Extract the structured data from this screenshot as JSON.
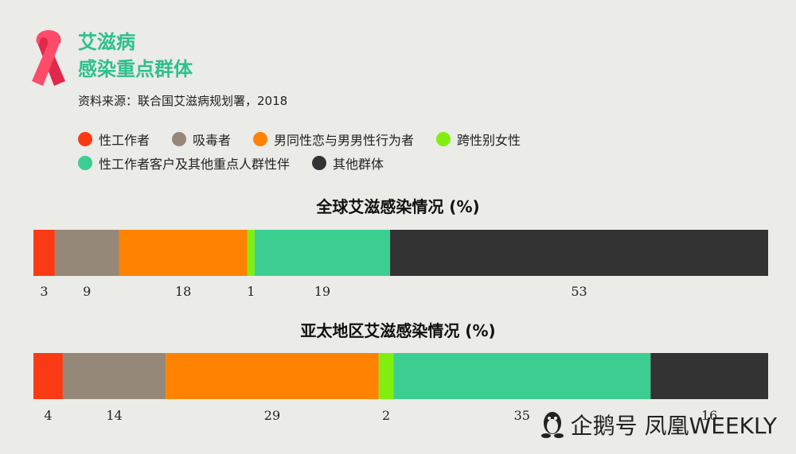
{
  "header": {
    "title_line1": "艾滋病",
    "title_line2": "感染重点群体",
    "source": "资料来源：联合国艾滋病规划署，2018"
  },
  "legend": {
    "row1": [
      {
        "label": "性工作者",
        "color": "#fa3a14"
      },
      {
        "label": "吸毒者",
        "color": "#958878"
      },
      {
        "label": "男同性恋与男男性行为者",
        "color": "#ff8200"
      },
      {
        "label": "跨性别女性",
        "color": "#80ef10"
      }
    ],
    "row2": [
      {
        "label": "性工作者客户及其他重点人群性伴",
        "color": "#3cce90"
      },
      {
        "label": "其他群体",
        "color": "#333333"
      }
    ]
  },
  "chart_data": [
    {
      "type": "bar",
      "title": "全球艾滋感染情况 (%)",
      "categories": [
        "性工作者",
        "吸毒者",
        "男同性恋与男男性行为者",
        "跨性别女性",
        "性工作者客户及其他重点人群性伴",
        "其他群体"
      ],
      "values": [
        3,
        9,
        18,
        1,
        19,
        53
      ],
      "stacked": true,
      "colors": [
        "#fa3a14",
        "#958878",
        "#ff8200",
        "#80ef10",
        "#3cce90",
        "#333333"
      ]
    },
    {
      "type": "bar",
      "title": "亚太地区艾滋感染情况 (%)",
      "categories": [
        "性工作者",
        "吸毒者",
        "男同性恋与男男性行为者",
        "跨性别女性",
        "性工作者客户及其他重点人群性伴",
        "其他群体"
      ],
      "values": [
        4,
        14,
        29,
        2,
        35,
        16
      ],
      "stacked": true,
      "colors": [
        "#fa3a14",
        "#958878",
        "#ff8200",
        "#80ef10",
        "#3cce90",
        "#333333"
      ]
    }
  ],
  "watermark": {
    "text": "企鹅号 凤凰WEEKLY"
  }
}
